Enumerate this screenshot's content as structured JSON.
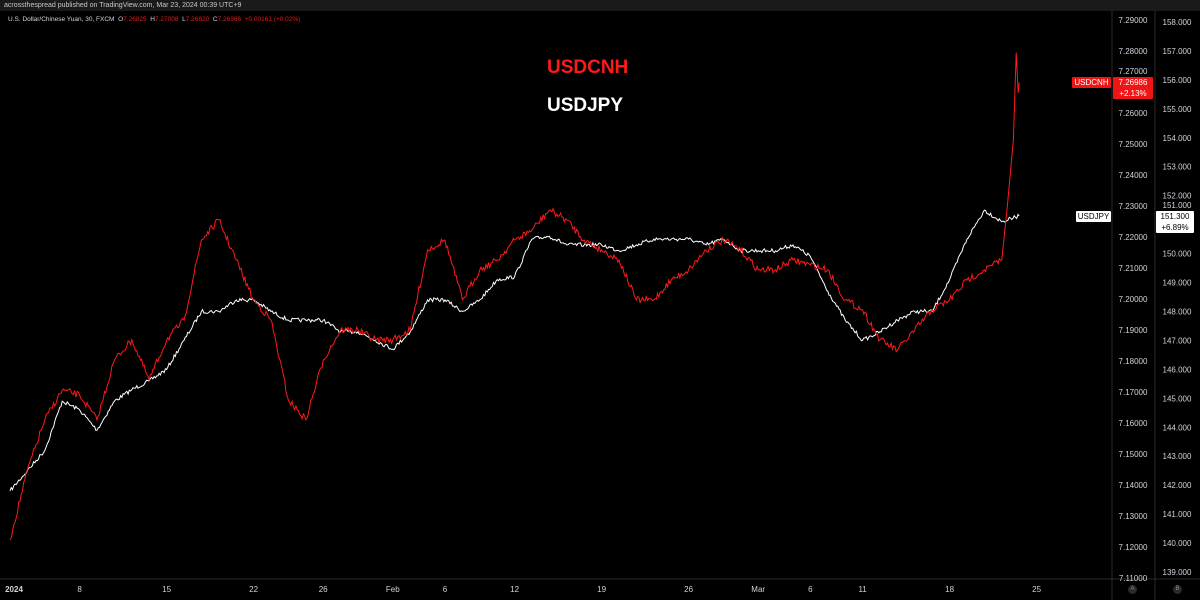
{
  "attribution": "acrossthespread published on TradingView.com, Mar 23, 2024 00:39 UTC+9",
  "legend": {
    "symbol": "U.S. Dollar/Chinese Yuan, 30, FXCM",
    "o_label": "O",
    "o": "7.26825",
    "h_label": "H",
    "h": "7.27008",
    "l_label": "L",
    "l": "7.26820",
    "c_label": "C",
    "c": "7.26986",
    "change": "+0.00161 (+0.02%)"
  },
  "annotations": {
    "usdcnh": "USDCNH",
    "usdjpy": "USDJPY"
  },
  "tags": {
    "cnh_name": "USDCNH",
    "cnh_price": "7.26986",
    "cnh_change": "+2.13%",
    "jpy_name": "USDJPY",
    "jpy_price": "151.300",
    "jpy_change": "+6.89%"
  },
  "scale_buttons": [
    "A",
    "B"
  ],
  "chart_data": {
    "type": "line",
    "title": "",
    "colors": {
      "USDCNH": "#ff1a1a",
      "USDJPY": "#ffffff",
      "background": "#000000"
    },
    "x_tick_labels": [
      "2024",
      "8",
      "15",
      "22",
      "26",
      "Feb",
      "6",
      "12",
      "19",
      "26",
      "Mar",
      "6",
      "11",
      "18",
      "25"
    ],
    "x_tick_dates": [
      "2024-01-02",
      "2024-01-08",
      "2024-01-15",
      "2024-01-22",
      "2024-01-26",
      "2024-02-01",
      "2024-02-06",
      "2024-02-12",
      "2024-02-19",
      "2024-02-26",
      "2024-03-01",
      "2024-03-06",
      "2024-03-11",
      "2024-03-18",
      "2024-03-25"
    ],
    "x": [
      "2024-01-02",
      "2024-01-03",
      "2024-01-04",
      "2024-01-05",
      "2024-01-08",
      "2024-01-09",
      "2024-01-10",
      "2024-01-11",
      "2024-01-12",
      "2024-01-15",
      "2024-01-16",
      "2024-01-17",
      "2024-01-18",
      "2024-01-19",
      "2024-01-22",
      "2024-01-23",
      "2024-01-24",
      "2024-01-25",
      "2024-01-26",
      "2024-01-29",
      "2024-01-30",
      "2024-01-31",
      "2024-02-01",
      "2024-02-02",
      "2024-02-05",
      "2024-02-06",
      "2024-02-07",
      "2024-02-08",
      "2024-02-09",
      "2024-02-12",
      "2024-02-13",
      "2024-02-14",
      "2024-02-15",
      "2024-02-16",
      "2024-02-19",
      "2024-02-20",
      "2024-02-21",
      "2024-02-22",
      "2024-02-23",
      "2024-02-26",
      "2024-02-27",
      "2024-02-28",
      "2024-02-29",
      "2024-03-01",
      "2024-03-04",
      "2024-03-05",
      "2024-03-06",
      "2024-03-07",
      "2024-03-08",
      "2024-03-11",
      "2024-03-12",
      "2024-03-13",
      "2024-03-14",
      "2024-03-15",
      "2024-03-18",
      "2024-03-19",
      "2024-03-20",
      "2024-03-21",
      "2024-03-22"
    ],
    "series": [
      {
        "name": "USDCNH",
        "axis": "left",
        "values": [
          7.1223,
          7.1448,
          7.161,
          7.1706,
          7.169,
          7.161,
          7.1803,
          7.1868,
          7.1739,
          7.1868,
          7.1932,
          7.219,
          7.2255,
          7.2126,
          7.1997,
          7.1932,
          7.1674,
          7.161,
          7.1803,
          7.19,
          7.19,
          7.1868,
          7.1868,
          7.19,
          7.2158,
          7.219,
          7.1997,
          7.2094,
          7.2126,
          7.219,
          7.2223,
          7.2287,
          7.2255,
          7.219,
          7.2158,
          7.2126,
          7.1997,
          7.1997,
          7.2061,
          7.2094,
          7.2158,
          7.219,
          7.2158,
          7.2094,
          7.2094,
          7.2126,
          7.211,
          7.2094,
          7.1997,
          7.1965,
          7.1868,
          7.1835,
          7.19,
          7.1965,
          7.1997,
          7.2061,
          7.2094,
          7.2126,
          7.26986
        ]
      },
      {
        "name": "USDJPY",
        "axis": "right",
        "values": [
          141.8,
          142.5,
          143.2,
          144.9,
          144.6,
          143.9,
          144.9,
          145.3,
          145.6,
          146.0,
          147.0,
          148.0,
          148.0,
          148.4,
          148.4,
          148.0,
          147.7,
          147.7,
          147.7,
          147.3,
          147.3,
          147.0,
          146.7,
          147.3,
          148.4,
          148.4,
          148.0,
          148.4,
          149.1,
          149.2,
          150.5,
          150.6,
          150.3,
          150.3,
          150.3,
          150.1,
          150.3,
          150.5,
          150.5,
          150.5,
          150.3,
          150.5,
          150.1,
          150.1,
          150.1,
          150.3,
          149.9,
          148.7,
          147.7,
          147.0,
          147.3,
          147.7,
          148.0,
          148.0,
          149.1,
          150.5,
          151.5,
          151.1,
          151.3
        ]
      }
    ],
    "left_axis": {
      "ticks": [
        "7.29000",
        "7.28000",
        "7.27000",
        "7.26000",
        "7.25000",
        "7.24000",
        "7.23000",
        "7.22000",
        "7.21000",
        "7.20000",
        "7.19000",
        "7.18000",
        "7.17000",
        "7.16000",
        "7.15000",
        "7.14000",
        "7.13000",
        "7.12000",
        "7.11000"
      ],
      "ylim": [
        7.11,
        7.29
      ]
    },
    "right_axis": {
      "ticks": [
        "158.000",
        "157.000",
        "156.000",
        "155.000",
        "154.000",
        "153.000",
        "152.000",
        "151.000",
        "150.000",
        "149.000",
        "148.000",
        "147.000",
        "146.000",
        "145.000",
        "144.000",
        "143.000",
        "142.000",
        "141.000",
        "140.000",
        "139.000"
      ],
      "ylim": [
        139,
        158
      ]
    },
    "grid": false
  }
}
